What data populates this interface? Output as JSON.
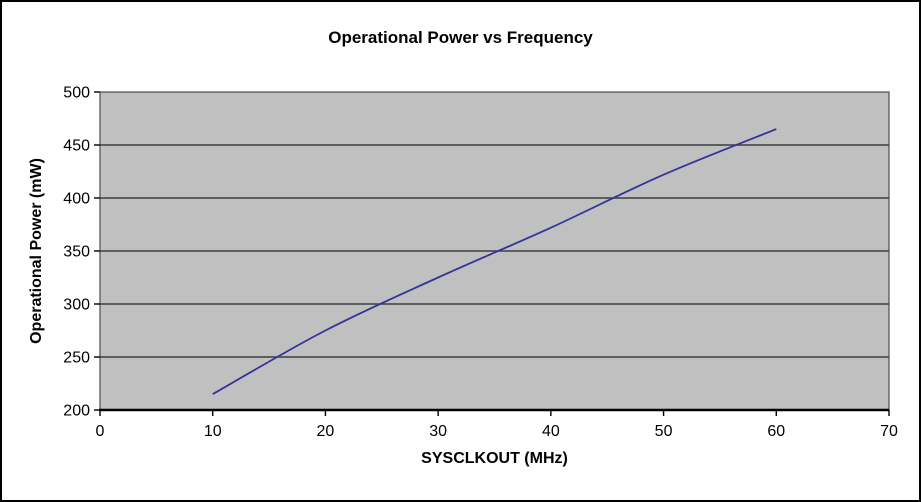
{
  "chart_data": {
    "type": "line",
    "title": "Operational Power vs Frequency",
    "xlabel": "SYSCLKOUT (MHz)",
    "ylabel": "Operational Power (mW)",
    "x": [
      10,
      20,
      30,
      40,
      50,
      60
    ],
    "y": [
      215,
      275,
      325,
      372,
      422,
      465
    ],
    "xlim": [
      0,
      70
    ],
    "ylim": [
      200,
      500
    ],
    "xticks": [
      0,
      10,
      20,
      30,
      40,
      50,
      60,
      70
    ],
    "yticks": [
      200,
      250,
      300,
      350,
      400,
      450,
      500
    ],
    "grid": "horizontal",
    "legend": "none",
    "line_color": "#333399",
    "plot_bg_color": "#c0c0c0",
    "gridline_color": "#3d3d3d",
    "plot_border_color": "#4d4d4d",
    "axis_color": "#000000"
  }
}
